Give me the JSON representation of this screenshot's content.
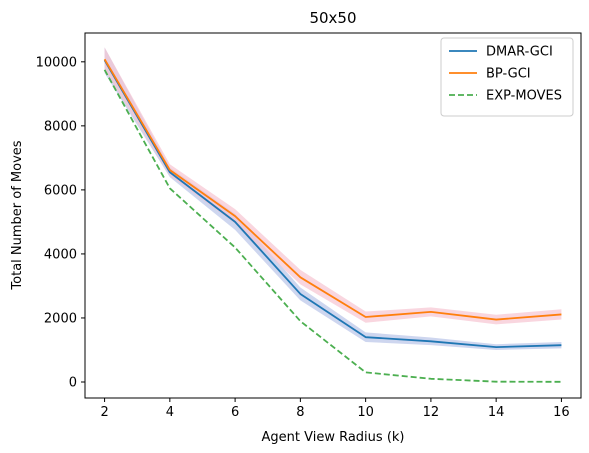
{
  "chart_data": {
    "type": "line",
    "title": "50x50",
    "xlabel": "Agent View Radius (k)",
    "ylabel": "Total Number of Moves",
    "x": [
      2,
      4,
      6,
      8,
      10,
      12,
      14,
      16
    ],
    "xlim": [
      1.4,
      16.6
    ],
    "ylim": [
      -500,
      10900
    ],
    "xticks": [
      2,
      4,
      6,
      8,
      10,
      12,
      14,
      16
    ],
    "yticks": [
      0,
      2000,
      4000,
      6000,
      8000,
      10000
    ],
    "grid": false,
    "legend_position": "top-right",
    "series": [
      {
        "name": "DMAR-GCI",
        "color": "#1f77b4",
        "style": "solid",
        "values": [
          10050,
          6550,
          5000,
          2750,
          1400,
          1270,
          1090,
          1150
        ],
        "band_lower": [
          9650,
          6400,
          4750,
          2550,
          1250,
          1150,
          1000,
          1050
        ],
        "band_upper": [
          10450,
          6700,
          5250,
          2950,
          1550,
          1390,
          1180,
          1250
        ],
        "band_color": "#b9c4e8"
      },
      {
        "name": "BP-GCI",
        "color": "#ff7f0e",
        "style": "solid",
        "values": [
          10080,
          6620,
          5180,
          3270,
          2030,
          2190,
          1950,
          2110
        ],
        "band_lower": [
          9750,
          6450,
          4950,
          3050,
          1850,
          2050,
          1800,
          1950
        ],
        "band_upper": [
          10450,
          6800,
          5400,
          3500,
          2200,
          2330,
          2100,
          2270
        ],
        "band_color": "#f6c5d1"
      },
      {
        "name": "EXP-MOVES",
        "color": "#4caf50",
        "style": "dashed",
        "values": [
          9750,
          6050,
          4200,
          1900,
          300,
          100,
          10,
          5
        ]
      }
    ]
  }
}
